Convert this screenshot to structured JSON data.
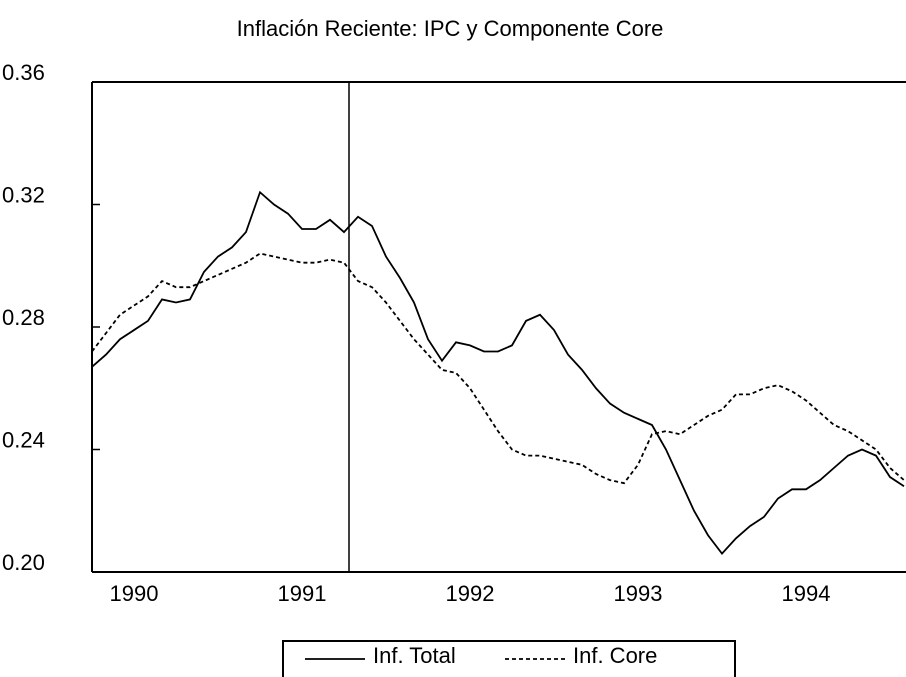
{
  "chart_data": {
    "type": "line",
    "title": "Inflación Reciente: IPC y Componente Core",
    "categories": [
      null,
      null,
      null,
      "1990",
      null,
      null,
      null,
      null,
      null,
      null,
      null,
      null,
      null,
      null,
      null,
      "1991",
      null,
      null,
      null,
      null,
      null,
      null,
      null,
      null,
      null,
      null,
      null,
      "1992",
      null,
      null,
      null,
      null,
      null,
      null,
      null,
      null,
      null,
      null,
      null,
      "1993",
      null,
      null,
      null,
      null,
      null,
      null,
      null,
      null,
      null,
      null,
      null,
      "1994",
      null,
      null,
      null,
      null,
      null,
      null,
      null
    ],
    "series": [
      {
        "name": "Inf. Total",
        "color": "#000000",
        "dash": "solid",
        "values": [
          0.267,
          0.271,
          0.276,
          0.279,
          0.282,
          0.289,
          0.288,
          0.289,
          0.298,
          0.303,
          0.306,
          0.311,
          0.324,
          0.32,
          0.317,
          0.312,
          0.312,
          0.315,
          0.311,
          0.316,
          0.313,
          0.303,
          0.296,
          0.288,
          0.276,
          0.269,
          0.275,
          0.274,
          0.272,
          0.272,
          0.274,
          0.282,
          0.284,
          0.279,
          0.271,
          0.266,
          0.26,
          0.255,
          0.252,
          0.25,
          0.248,
          0.24,
          0.23,
          0.22,
          0.212,
          0.206,
          0.211,
          0.215,
          0.218,
          0.224,
          0.227,
          0.227,
          0.23,
          0.234,
          0.238,
          0.24,
          0.238,
          0.231,
          0.228
        ]
      },
      {
        "name": "Inf. Core",
        "color": "#000000",
        "dash": "dashed",
        "values": [
          0.272,
          0.278,
          0.284,
          0.287,
          0.29,
          0.295,
          0.293,
          0.293,
          0.295,
          0.297,
          0.299,
          0.301,
          0.304,
          0.303,
          0.302,
          0.301,
          0.301,
          0.302,
          0.301,
          0.295,
          0.293,
          0.288,
          0.282,
          0.276,
          0.271,
          0.266,
          0.265,
          0.26,
          0.253,
          0.246,
          0.24,
          0.238,
          0.238,
          0.237,
          0.236,
          0.235,
          0.232,
          0.23,
          0.229,
          0.235,
          0.245,
          0.246,
          0.245,
          0.248,
          0.251,
          0.253,
          0.258,
          0.258,
          0.26,
          0.261,
          0.259,
          0.256,
          0.252,
          0.248,
          0.246,
          0.243,
          0.24,
          0.234,
          0.23
        ]
      }
    ],
    "ylim": [
      0.2,
      0.36
    ],
    "yticks": [
      {
        "value": 0.2,
        "label": "0.20"
      },
      0.24,
      0.28,
      0.32,
      0.36
    ],
    "grid": false,
    "legend": "bottom"
  }
}
